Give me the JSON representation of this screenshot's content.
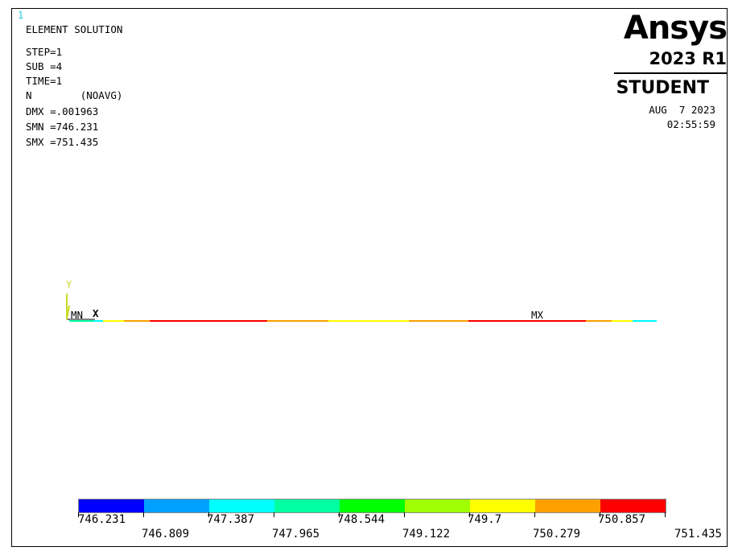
{
  "window_number": "1",
  "info": {
    "title": "ELEMENT SOLUTION",
    "step": "STEP=1",
    "sub": "SUB =4",
    "time": "TIME=1",
    "n": "N        (NOAVG)",
    "dmx": "DMX =.001963",
    "smn": "SMN =746.231",
    "smx": "SMX =751.435"
  },
  "logo": {
    "word": "Ansys",
    "version": "2023 R1",
    "edition": "STUDENT"
  },
  "date": "AUG  7 2023",
  "time_of_day": "02:55:59",
  "plot": {
    "y_axis_label": "Y",
    "x_axis_label": "X",
    "min_label": "MN",
    "max_label": "MX"
  },
  "legend": {
    "colors": [
      "#0000ff",
      "#00a0ff",
      "#00ffff",
      "#00ffa0",
      "#00ff00",
      "#a0ff00",
      "#ffff00",
      "#ffa000",
      "#ff0000"
    ],
    "values_top": [
      "746.231",
      "747.387",
      "748.544",
      "749.7",
      "750.857"
    ],
    "values_bottom": [
      "746.809",
      "747.965",
      "749.122",
      "750.279",
      "751.435"
    ]
  }
}
